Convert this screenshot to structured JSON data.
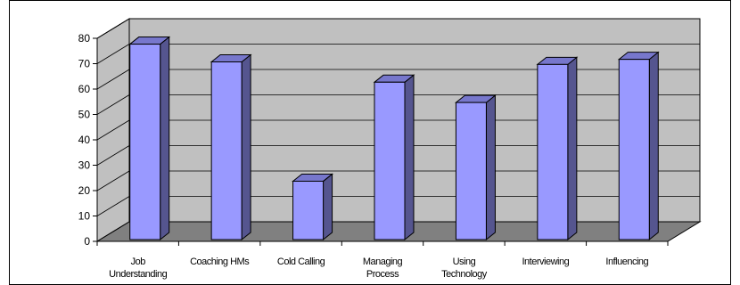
{
  "chart_data": {
    "type": "bar",
    "style": "3d-column",
    "categories": [
      "Job Understanding",
      "Coaching HMs",
      "Cold Calling",
      "Managing Process",
      "Using Technology",
      "Interviewing",
      "Influencing"
    ],
    "category_label_lines": [
      [
        "Job",
        "Understanding"
      ],
      [
        "Coaching HMs"
      ],
      [
        "Cold Calling"
      ],
      [
        "Managing",
        "Process"
      ],
      [
        "Using",
        "Technology"
      ],
      [
        "Interviewing"
      ],
      [
        "Influencing"
      ]
    ],
    "values": [
      77,
      70,
      23,
      62,
      54,
      69,
      71
    ],
    "yticks": [
      "0",
      "10",
      "20",
      "30",
      "40",
      "50",
      "60",
      "70",
      "80"
    ],
    "ylim": [
      0,
      80
    ],
    "grid": true,
    "legend": "none",
    "colors": {
      "bar_front": "#9999ff",
      "bar_side": "#55558f",
      "bar_top": "#7777cc",
      "back_wall": "#c0c0c0",
      "floor": "#808080",
      "gridline": "#000000"
    }
  }
}
